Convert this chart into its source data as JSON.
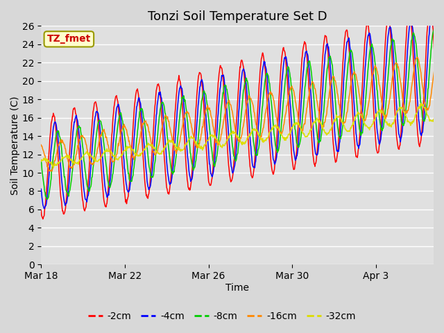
{
  "title": "Tonzi Soil Temperature Set D",
  "xlabel": "Time",
  "ylabel": "Soil Temperature (C)",
  "label_box": "TZ_fmet",
  "ylim": [
    0,
    26
  ],
  "yticks": [
    0,
    2,
    4,
    6,
    8,
    10,
    12,
    14,
    16,
    18,
    20,
    22,
    24,
    26
  ],
  "xtick_labels": [
    "Mar 18",
    "Mar 22",
    "Mar 26",
    "Mar 30",
    "Apr 3"
  ],
  "series_colors": [
    "#ff0000",
    "#0000ff",
    "#00cc00",
    "#ff8800",
    "#dddd00"
  ],
  "series_labels": [
    "-2cm",
    "-4cm",
    "-8cm",
    "-16cm",
    "-32cm"
  ],
  "fig_bg_color": "#d8d8d8",
  "plot_bg_color": "#e0e0e0",
  "legend_box_color": "#ffffcc",
  "legend_box_edge": "#999900",
  "title_fontsize": 13,
  "axis_label_fontsize": 10,
  "tick_fontsize": 10,
  "legend_fontsize": 10,
  "n_days": 19,
  "spd": 48,
  "base_temps": [
    10.5,
    10.5,
    10.5,
    11.5,
    11.0
  ],
  "start_amps": [
    5.5,
    4.5,
    3.5,
    1.5,
    0.4
  ],
  "end_amps": [
    7.5,
    6.5,
    5.0,
    3.0,
    1.0
  ],
  "trend": [
    0.55,
    0.55,
    0.55,
    0.45,
    0.3
  ],
  "phase_hours": [
    0.0,
    2.0,
    5.0,
    9.0,
    14.0
  ],
  "peak_hour": 14
}
